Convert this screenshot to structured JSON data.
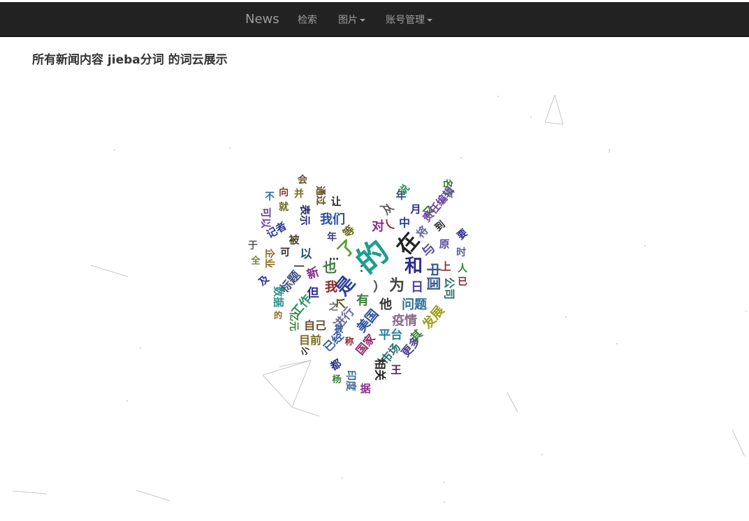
{
  "navbar": {
    "brand": "News",
    "items": [
      {
        "label": "检索",
        "dropdown": false
      },
      {
        "label": "图片",
        "dropdown": true
      },
      {
        "label": "账号管理",
        "dropdown": true
      }
    ]
  },
  "page_title": "所有新闻内容 jieba分词 的词云展示",
  "word_cloud": {
    "shape": "heart",
    "words": [
      {
        "text": "的",
        "color": "#1a9e8f",
        "size": 44,
        "rotate": -40
      },
      {
        "text": "在",
        "color": "#222222",
        "size": 30,
        "rotate": -50
      },
      {
        "text": "是",
        "color": "#2c3e94",
        "size": 26,
        "rotate": -50
      },
      {
        "text": "和",
        "color": "#2c2c8c",
        "size": 26,
        "rotate": 0
      },
      {
        "text": "了",
        "color": "#5b9e2d",
        "size": 24,
        "rotate": -45
      },
      {
        "text": "为",
        "color": "#444444",
        "size": 22,
        "rotate": 0
      },
      {
        "text": "中国",
        "color": "#3d5c8a",
        "size": 20,
        "rotate": 90
      },
      {
        "text": "也",
        "color": "#3a7f3a",
        "size": 20,
        "rotate": 0
      },
      {
        "text": "我们",
        "color": "#2a4f9e",
        "size": 18,
        "rotate": 0
      },
      {
        "text": "对",
        "color": "#8a2b8a",
        "size": 18,
        "rotate": 0
      },
      {
        "text": "与",
        "color": "#5b4b9e",
        "size": 18,
        "rotate": -45
      },
      {
        "text": "日",
        "color": "#4a3fa0",
        "size": 18,
        "rotate": 0
      },
      {
        "text": "他",
        "color": "#333333",
        "size": 18,
        "rotate": 0
      },
      {
        "text": "问题",
        "color": "#2a6f9e",
        "size": 18,
        "rotate": 0
      },
      {
        "text": "疫情",
        "color": "#8a6a8a",
        "size": 18,
        "rotate": 0
      },
      {
        "text": "发展",
        "color": "#9e9e1a",
        "size": 18,
        "rotate": -50
      },
      {
        "text": "美国",
        "color": "#2a4f9e",
        "size": 18,
        "rotate": -50
      },
      {
        "text": "平台",
        "color": "#2a7f9e",
        "size": 17,
        "rotate": 0
      },
      {
        "text": "有",
        "color": "#3a7f3a",
        "size": 18,
        "rotate": 0
      },
      {
        "text": "我",
        "color": "#8a2b2b",
        "size": 18,
        "rotate": 0
      },
      {
        "text": "个",
        "color": "#5b5b1a",
        "size": 18,
        "rotate": -45
      },
      {
        "text": "进行",
        "color": "#6a6a9e",
        "size": 17,
        "rotate": -50
      },
      {
        "text": "但",
        "color": "#2c2c8c",
        "size": 17,
        "rotate": 0
      },
      {
        "text": "工作",
        "color": "#2a8f5f",
        "size": 17,
        "rotate": -50
      },
      {
        "text": "标题",
        "color": "#3a4f7f",
        "size": 17,
        "rotate": -50
      },
      {
        "text": "新",
        "color": "#8a2b8a",
        "size": 17,
        "rotate": -20
      },
      {
        "text": "以",
        "color": "#2a4f6f",
        "size": 17,
        "rotate": 0
      },
      {
        "text": "自己",
        "color": "#6a4f2a",
        "size": 16,
        "rotate": 0
      },
      {
        "text": "目前",
        "color": "#7a6a1a",
        "size": 16,
        "rotate": 0
      },
      {
        "text": "已经",
        "color": "#3a5f9e",
        "size": 16,
        "rotate": -45
      },
      {
        "text": "国家",
        "color": "#8a2b6a",
        "size": 16,
        "rotate": -50
      },
      {
        "text": "市场",
        "color": "#2a6f6f",
        "size": 16,
        "rotate": -50
      },
      {
        "text": "更多",
        "color": "#4a3f8a",
        "size": 16,
        "rotate": -50
      },
      {
        "text": "其",
        "color": "#3a7f3a",
        "size": 16,
        "rotate": -45
      },
      {
        "text": "相关",
        "color": "#222222",
        "size": 16,
        "rotate": 90
      },
      {
        "text": "王",
        "color": "#5b1a5b",
        "size": 15,
        "rotate": 0
      },
      {
        "text": "印度",
        "color": "#3a6f9e",
        "size": 15,
        "rotate": 90
      },
      {
        "text": "都",
        "color": "#2c2c8c",
        "size": 15,
        "rotate": -30
      },
      {
        "text": "据",
        "color": "#8a2b8a",
        "size": 15,
        "rotate": 0
      },
      {
        "text": "将",
        "color": "#6a6a9e",
        "size": 16,
        "rotate": -45
      },
      {
        "text": "中",
        "color": "#2c3e94",
        "size": 16,
        "rotate": 0
      },
      {
        "text": "从",
        "color": "#5b5b5b",
        "size": 15,
        "rotate": -40
      },
      {
        "text": "年",
        "color": "#2a4f6f",
        "size": 15,
        "rotate": 0
      },
      {
        "text": "月",
        "color": "#2c2c8c",
        "size": 15,
        "rotate": 0
      },
      {
        "text": "又",
        "color": "#2a6f2a",
        "size": 15,
        "rotate": -45
      },
      {
        "text": "说",
        "color": "#2a8f5f",
        "size": 14,
        "rotate": -50
      },
      {
        "text": "责任编辑",
        "color": "#6a3fa0",
        "size": 15,
        "rotate": -50
      },
      {
        "text": "名下",
        "color": "#3a7f3a",
        "size": 14,
        "rotate": 90
      },
      {
        "text": "到",
        "color": "#2a2a2a",
        "size": 14,
        "rotate": -40
      },
      {
        "text": "原",
        "color": "#5b4b9e",
        "size": 15,
        "rotate": 0
      },
      {
        "text": "要",
        "color": "#2c2c8c",
        "size": 14,
        "rotate": -40
      },
      {
        "text": "时",
        "color": "#5b5b9e",
        "size": 14,
        "rotate": 0
      },
      {
        "text": "上",
        "color": "#8a2b2b",
        "size": 15,
        "rotate": 0
      },
      {
        "text": "公司",
        "color": "#2a6f6f",
        "size": 16,
        "rotate": 90
      },
      {
        "text": "人",
        "color": "#3a7f3a",
        "size": 14,
        "rotate": 0
      },
      {
        "text": "已",
        "color": "#8a2b2b",
        "size": 14,
        "rotate": 0
      },
      {
        "text": "等",
        "color": "#6a6a1a",
        "size": 16,
        "rotate": -45
      },
      {
        "text": "年",
        "color": "#3a3a8a",
        "size": 14,
        "rotate": 0
      },
      {
        "text": "让",
        "color": "#2a2a2a",
        "size": 15,
        "rotate": 0
      },
      {
        "text": "通过",
        "color": "#5b4b1a",
        "size": 14,
        "rotate": 90
      },
      {
        "text": "表示",
        "color": "#2a2a6a",
        "size": 15,
        "rotate": 90
      },
      {
        "text": "并",
        "color": "#7a6a1a",
        "size": 14,
        "rotate": 0
      },
      {
        "text": "会",
        "color": "#6a4f2a",
        "size": 14,
        "rotate": 0
      },
      {
        "text": "向",
        "color": "#8a3b2b",
        "size": 14,
        "rotate": 0
      },
      {
        "text": "就",
        "color": "#6a6a1a",
        "size": 14,
        "rotate": 0
      },
      {
        "text": "不",
        "color": "#2a6f9e",
        "size": 14,
        "rotate": 0
      },
      {
        "text": "可以",
        "color": "#6a3fa0",
        "size": 15,
        "rotate": 90
      },
      {
        "text": "记者",
        "color": "#2c3e94",
        "size": 15,
        "rotate": -30
      },
      {
        "text": "被",
        "color": "#4a3f2a",
        "size": 15,
        "rotate": 0
      },
      {
        "text": "可",
        "color": "#2a2a2a",
        "size": 14,
        "rotate": 0
      },
      {
        "text": "一",
        "color": "#444444",
        "size": 15,
        "rotate": 0
      },
      {
        "text": "于",
        "color": "#5b5b5b",
        "size": 14,
        "rotate": 0
      },
      {
        "text": "全",
        "color": "#6a8a2a",
        "size": 13,
        "rotate": 0
      },
      {
        "text": "企业",
        "color": "#8a6a1a",
        "size": 14,
        "rotate": 90
      },
      {
        "text": "及",
        "color": "#2c2c8c",
        "size": 14,
        "rotate": -40
      },
      {
        "text": "数据",
        "color": "#2a8f8f",
        "size": 15,
        "rotate": 90
      },
      {
        "text": "亿元",
        "color": "#3a7f3a",
        "size": 14,
        "rotate": 90
      },
      {
        "text": "小",
        "color": "#2a2a2a",
        "size": 13,
        "rotate": -40
      },
      {
        "text": "杨",
        "color": "#3a7f3a",
        "size": 13,
        "rotate": 0
      },
      {
        "text": "被",
        "color": "#3a5f9e",
        "size": 13,
        "rotate": 0
      },
      {
        "text": "称",
        "color": "#8a2b2b",
        "size": 13,
        "rotate": 0
      },
      {
        "text": "之",
        "color": "#6a6a6a",
        "size": 13,
        "rotate": 0
      },
      {
        "text": "：",
        "color": "#2a2a2a",
        "size": 14,
        "rotate": 0
      },
      {
        "text": "（",
        "color": "#8a2b2b",
        "size": 18,
        "rotate": -40
      },
      {
        "text": "）",
        "color": "#444444",
        "size": 18,
        "rotate": 0
      },
      {
        "text": "…",
        "color": "#2a2a2a",
        "size": 14,
        "rotate": 0
      },
      {
        "text": "的",
        "color": "#8a6a1a",
        "size": 12,
        "rotate": 0
      },
      {
        "text": "一",
        "color": "#5b5b5b",
        "size": 14,
        "rotate": 0
      }
    ]
  }
}
